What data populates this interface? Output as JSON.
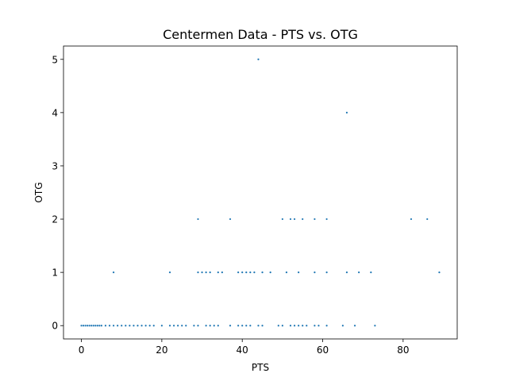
{
  "chart_data": {
    "type": "scatter",
    "title": "Centermen Data - PTS vs. OTG",
    "xlabel": "PTS",
    "ylabel": "OTG",
    "xlim": [
      -4.45,
      93.45
    ],
    "ylim": [
      -0.25,
      5.25
    ],
    "xticks": [
      0,
      20,
      40,
      60,
      80
    ],
    "yticks": [
      0,
      1,
      2,
      3,
      4,
      5
    ],
    "grid": false,
    "colors": {
      "points": "#1f77b4",
      "axes": "#000000"
    },
    "series": [
      {
        "name": "Centermen",
        "x": [
          0,
          0.5,
          1,
          1.5,
          2,
          2.5,
          3,
          3.5,
          4,
          4.5,
          5,
          6,
          7,
          8,
          9,
          10,
          11,
          12,
          13,
          14,
          15,
          16,
          17,
          18,
          20,
          22,
          23,
          24,
          25,
          26,
          28,
          29,
          31,
          32,
          33,
          34,
          37,
          39,
          40,
          41,
          42,
          44,
          45,
          49,
          50,
          52,
          53,
          54,
          55,
          56,
          58,
          59,
          61,
          65,
          68,
          73,
          8,
          22,
          29,
          30,
          31,
          32,
          34,
          35,
          39,
          40,
          41,
          42,
          43,
          45,
          47,
          51,
          54,
          58,
          61,
          66,
          69,
          72,
          89,
          29,
          37,
          50,
          52,
          53,
          55,
          58,
          61,
          82,
          86,
          66,
          44
        ],
        "y": [
          0,
          0,
          0,
          0,
          0,
          0,
          0,
          0,
          0,
          0,
          0,
          0,
          0,
          0,
          0,
          0,
          0,
          0,
          0,
          0,
          0,
          0,
          0,
          0,
          0,
          0,
          0,
          0,
          0,
          0,
          0,
          0,
          0,
          0,
          0,
          0,
          0,
          0,
          0,
          0,
          0,
          0,
          0,
          0,
          0,
          0,
          0,
          0,
          0,
          0,
          0,
          0,
          0,
          0,
          0,
          0,
          1,
          1,
          1,
          1,
          1,
          1,
          1,
          1,
          1,
          1,
          1,
          1,
          1,
          1,
          1,
          1,
          1,
          1,
          1,
          1,
          1,
          1,
          1,
          2,
          2,
          2,
          2,
          2,
          2,
          2,
          2,
          2,
          2,
          4,
          5
        ]
      }
    ]
  }
}
